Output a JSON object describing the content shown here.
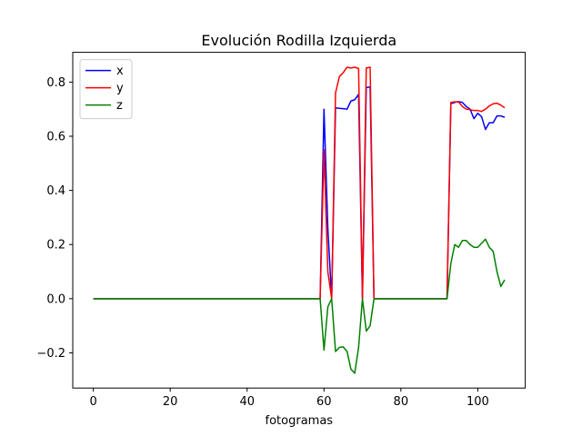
{
  "chart_data": {
    "type": "line",
    "title": "Evolución Rodilla Izquierda",
    "xlabel": "fotogramas",
    "ylabel": "",
    "xlim": [
      -5.35,
      112.35
    ],
    "ylim": [
      -0.33,
      0.91
    ],
    "xticks": [
      0,
      20,
      40,
      60,
      80,
      100
    ],
    "yticks": [
      -0.2,
      0.0,
      0.2,
      0.4,
      0.6,
      0.8
    ],
    "ytick_labels": [
      "−0.2",
      "0.0",
      "0.2",
      "0.4",
      "0.6",
      "0.8"
    ],
    "grid": false,
    "legend_position": "upper left",
    "series": [
      {
        "name": "x",
        "color": "#0000ff",
        "points": [
          [
            0,
            0
          ],
          [
            59,
            0
          ],
          [
            60,
            0.7
          ],
          [
            61,
            0.26
          ],
          [
            62,
            0
          ],
          [
            63,
            0.705
          ],
          [
            64,
            0.703
          ],
          [
            65,
            0.702
          ],
          [
            66,
            0.7
          ],
          [
            67,
            0.73
          ],
          [
            68,
            0.735
          ],
          [
            69,
            0.755
          ],
          [
            70,
            0
          ],
          [
            71,
            0.78
          ],
          [
            72,
            0.782
          ],
          [
            73,
            0
          ],
          [
            92,
            0
          ],
          [
            93,
            0.72
          ],
          [
            94,
            0.725
          ],
          [
            95,
            0.728
          ],
          [
            96,
            0.725
          ],
          [
            97,
            0.71
          ],
          [
            98,
            0.7
          ],
          [
            99,
            0.665
          ],
          [
            100,
            0.685
          ],
          [
            101,
            0.672
          ],
          [
            102,
            0.625
          ],
          [
            103,
            0.65
          ],
          [
            104,
            0.65
          ],
          [
            105,
            0.675
          ],
          [
            106,
            0.675
          ],
          [
            107,
            0.67
          ]
        ]
      },
      {
        "name": "y",
        "color": "#ff0000",
        "points": [
          [
            0,
            0
          ],
          [
            59,
            0
          ],
          [
            60,
            0.55
          ],
          [
            61,
            0.1
          ],
          [
            62,
            0
          ],
          [
            63,
            0.76
          ],
          [
            64,
            0.82
          ],
          [
            65,
            0.835
          ],
          [
            66,
            0.855
          ],
          [
            67,
            0.852
          ],
          [
            68,
            0.855
          ],
          [
            69,
            0.85
          ],
          [
            70,
            0
          ],
          [
            71,
            0.852
          ],
          [
            72,
            0.855
          ],
          [
            73,
            0
          ],
          [
            92,
            0
          ],
          [
            93,
            0.725
          ],
          [
            94,
            0.727
          ],
          [
            95,
            0.727
          ],
          [
            96,
            0.71
          ],
          [
            97,
            0.7
          ],
          [
            98,
            0.698
          ],
          [
            99,
            0.695
          ],
          [
            100,
            0.695
          ],
          [
            101,
            0.692
          ],
          [
            102,
            0.7
          ],
          [
            103,
            0.712
          ],
          [
            104,
            0.72
          ],
          [
            105,
            0.722
          ],
          [
            106,
            0.715
          ],
          [
            107,
            0.705
          ]
        ]
      },
      {
        "name": "z",
        "color": "#008000",
        "points": [
          [
            0,
            0
          ],
          [
            59,
            0
          ],
          [
            60,
            -0.19
          ],
          [
            61,
            -0.03
          ],
          [
            62,
            0
          ],
          [
            63,
            -0.195
          ],
          [
            64,
            -0.18
          ],
          [
            65,
            -0.178
          ],
          [
            66,
            -0.195
          ],
          [
            67,
            -0.26
          ],
          [
            68,
            -0.275
          ],
          [
            69,
            -0.18
          ],
          [
            70,
            0
          ],
          [
            71,
            -0.12
          ],
          [
            72,
            -0.1
          ],
          [
            73,
            0
          ],
          [
            92,
            0
          ],
          [
            93,
            0.13
          ],
          [
            94,
            0.2
          ],
          [
            95,
            0.19
          ],
          [
            96,
            0.215
          ],
          [
            97,
            0.215
          ],
          [
            98,
            0.2
          ],
          [
            99,
            0.19
          ],
          [
            100,
            0.19
          ],
          [
            101,
            0.205
          ],
          [
            102,
            0.22
          ],
          [
            103,
            0.19
          ],
          [
            104,
            0.175
          ],
          [
            105,
            0.1
          ],
          [
            106,
            0.045
          ],
          [
            107,
            0.07
          ]
        ]
      }
    ]
  }
}
